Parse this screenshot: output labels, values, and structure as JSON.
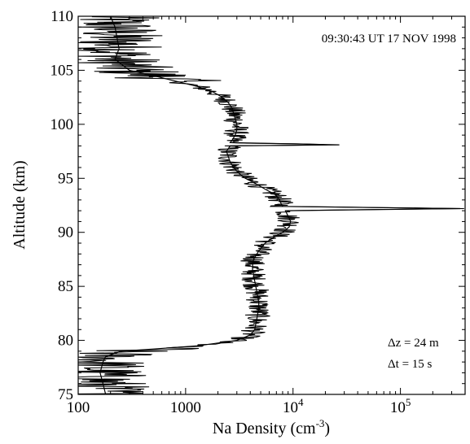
{
  "chart_data": {
    "type": "line",
    "title": "",
    "xlabel": "Na Density (cm",
    "xlabel_sup": "-3",
    "xlabel_close": ")",
    "ylabel": "Altitude (km)",
    "xscale": "log",
    "xlim": [
      100,
      400000
    ],
    "ylim": [
      75,
      110
    ],
    "grid": false,
    "x_ticks": [
      {
        "value": 100,
        "base": "100",
        "sup": ""
      },
      {
        "value": 1000,
        "base": "1000",
        "sup": ""
      },
      {
        "value": 10000,
        "base": "10",
        "sup": "4"
      },
      {
        "value": 100000,
        "base": "10",
        "sup": "5"
      }
    ],
    "y_ticks": [
      75,
      80,
      85,
      90,
      95,
      100,
      105,
      110
    ],
    "annotations": {
      "timestamp": "09:30:43 UT 17 NOV 1998",
      "dz": "Δz = 24 m",
      "dt": "Δt = 15 s"
    },
    "series": [
      {
        "name": "",
        "color": "#000000",
        "points": [
          [
            110.0,
            200
          ],
          [
            109.0,
            220
          ],
          [
            108.0,
            230
          ],
          [
            107.0,
            240
          ],
          [
            106.0,
            220
          ],
          [
            105.0,
            300
          ],
          [
            104.5,
            500
          ],
          [
            104.0,
            800
          ],
          [
            103.5,
            1300
          ],
          [
            103.0,
            1800
          ],
          [
            102.5,
            2200
          ],
          [
            102.0,
            2500
          ],
          [
            101.5,
            2700
          ],
          [
            101.0,
            2800
          ],
          [
            100.5,
            2900
          ],
          [
            100.0,
            3000
          ],
          [
            99.5,
            3000
          ],
          [
            99.0,
            2900
          ],
          [
            98.5,
            2700
          ],
          [
            98.3,
            2600
          ],
          [
            98.1,
            27000
          ],
          [
            98.0,
            2600
          ],
          [
            97.5,
            2400
          ],
          [
            97.0,
            2500
          ],
          [
            96.5,
            2600
          ],
          [
            96.0,
            2800
          ],
          [
            95.5,
            3100
          ],
          [
            95.0,
            3600
          ],
          [
            94.5,
            4500
          ],
          [
            94.0,
            5500
          ],
          [
            93.5,
            6800
          ],
          [
            93.0,
            7500
          ],
          [
            92.6,
            7800
          ],
          [
            92.4,
            8000
          ],
          [
            92.2,
            360000
          ],
          [
            92.0,
            8500
          ],
          [
            91.5,
            9000
          ],
          [
            91.0,
            9500
          ],
          [
            90.5,
            9200
          ],
          [
            90.0,
            8000
          ],
          [
            89.5,
            6500
          ],
          [
            89.0,
            5500
          ],
          [
            88.5,
            5000
          ],
          [
            88.0,
            4600
          ],
          [
            87.5,
            4300
          ],
          [
            87.0,
            4200
          ],
          [
            86.5,
            4200
          ],
          [
            86.0,
            4300
          ],
          [
            85.5,
            4400
          ],
          [
            85.0,
            4500
          ],
          [
            84.5,
            4600
          ],
          [
            84.0,
            4700
          ],
          [
            83.5,
            4800
          ],
          [
            83.0,
            4800
          ],
          [
            82.5,
            4700
          ],
          [
            82.0,
            4600
          ],
          [
            81.5,
            4500
          ],
          [
            81.0,
            4400
          ],
          [
            80.5,
            4000
          ],
          [
            80.0,
            3000
          ],
          [
            79.5,
            1300
          ],
          [
            79.2,
            500
          ],
          [
            79.0,
            250
          ],
          [
            78.5,
            180
          ],
          [
            78.0,
            170
          ],
          [
            77.0,
            160
          ],
          [
            76.0,
            170
          ],
          [
            75.0,
            180
          ]
        ]
      }
    ]
  }
}
